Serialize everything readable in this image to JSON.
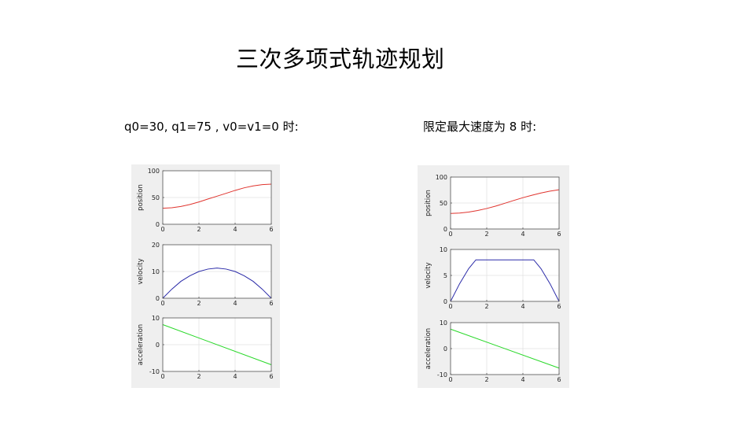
{
  "page": {
    "title": "三次多项式轨迹规划",
    "left_caption": "q0=30, q1=75 ,   v0=v1=0 时:",
    "right_caption": "限定最大速度为 8 时:"
  },
  "chart_data": [
    {
      "type": "line",
      "figure": "left",
      "subplot": "position",
      "ylabel": "position",
      "xlim": [
        0,
        6
      ],
      "ylim": [
        0,
        100
      ],
      "xticks": [
        0,
        2,
        4,
        6
      ],
      "yticks": [
        0,
        50,
        100
      ],
      "grid": true,
      "color": "#e0342e",
      "x": [
        0,
        0.5,
        1,
        1.5,
        2,
        2.5,
        3,
        3.5,
        4,
        4.5,
        5,
        5.5,
        6
      ],
      "values": [
        30,
        30.9,
        33.3,
        36.9,
        41.7,
        47.2,
        52.5,
        57.8,
        63.3,
        68.1,
        71.7,
        74.1,
        75
      ]
    },
    {
      "type": "line",
      "figure": "left",
      "subplot": "velocity",
      "ylabel": "velocity",
      "xlim": [
        0,
        6
      ],
      "ylim": [
        0,
        20
      ],
      "xticks": [
        0,
        2,
        4,
        6
      ],
      "yticks": [
        0,
        10,
        20
      ],
      "grid": true,
      "color": "#2a2aa8",
      "x": [
        0,
        0.5,
        1,
        1.5,
        2,
        2.5,
        3,
        3.5,
        4,
        4.5,
        5,
        5.5,
        6
      ],
      "values": [
        0,
        3.4,
        6.3,
        8.4,
        10,
        10.9,
        11.3,
        10.9,
        10,
        8.4,
        6.3,
        3.4,
        0
      ]
    },
    {
      "type": "line",
      "figure": "left",
      "subplot": "acceleration",
      "ylabel": "acceleration",
      "xlim": [
        0,
        6
      ],
      "ylim": [
        -10,
        10
      ],
      "xticks": [
        0,
        2,
        4,
        6
      ],
      "yticks": [
        -10,
        0,
        10
      ],
      "grid": true,
      "color": "#27d827",
      "x": [
        0,
        6
      ],
      "values": [
        7.5,
        -7.5
      ]
    },
    {
      "type": "line",
      "figure": "right",
      "subplot": "position",
      "ylabel": "position",
      "xlim": [
        0,
        6
      ],
      "ylim": [
        0,
        100
      ],
      "xticks": [
        0,
        2,
        4,
        6
      ],
      "yticks": [
        0,
        50,
        100
      ],
      "grid": true,
      "color": "#e0342e",
      "x": [
        0,
        0.5,
        1,
        1.5,
        2,
        2.5,
        3,
        3.5,
        4,
        4.5,
        5,
        5.5,
        6
      ],
      "values": [
        30,
        30.7,
        32.6,
        35.6,
        39.5,
        44.1,
        49.5,
        55,
        60.3,
        65,
        69.3,
        72.9,
        75.5
      ]
    },
    {
      "type": "line",
      "figure": "right",
      "subplot": "velocity",
      "ylabel": "velocity",
      "xlim": [
        0,
        6
      ],
      "ylim": [
        0,
        10
      ],
      "xticks": [
        0,
        2,
        4,
        6
      ],
      "yticks": [
        0,
        5,
        10
      ],
      "grid": true,
      "color": "#2a2aa8",
      "x": [
        0,
        0.5,
        1,
        1.4,
        2,
        3,
        4,
        4.6,
        5,
        5.5,
        6
      ],
      "values": [
        0,
        3.4,
        6.3,
        8,
        8,
        8,
        8,
        8,
        6.3,
        3.4,
        0
      ]
    },
    {
      "type": "line",
      "figure": "right",
      "subplot": "acceleration",
      "ylabel": "acceleration",
      "xlim": [
        0,
        6
      ],
      "ylim": [
        -10,
        10
      ],
      "xticks": [
        0,
        2,
        4,
        6
      ],
      "yticks": [
        -10,
        0,
        10
      ],
      "grid": true,
      "color": "#27d827",
      "x": [
        0,
        6
      ],
      "values": [
        7.5,
        -7.5
      ]
    }
  ]
}
